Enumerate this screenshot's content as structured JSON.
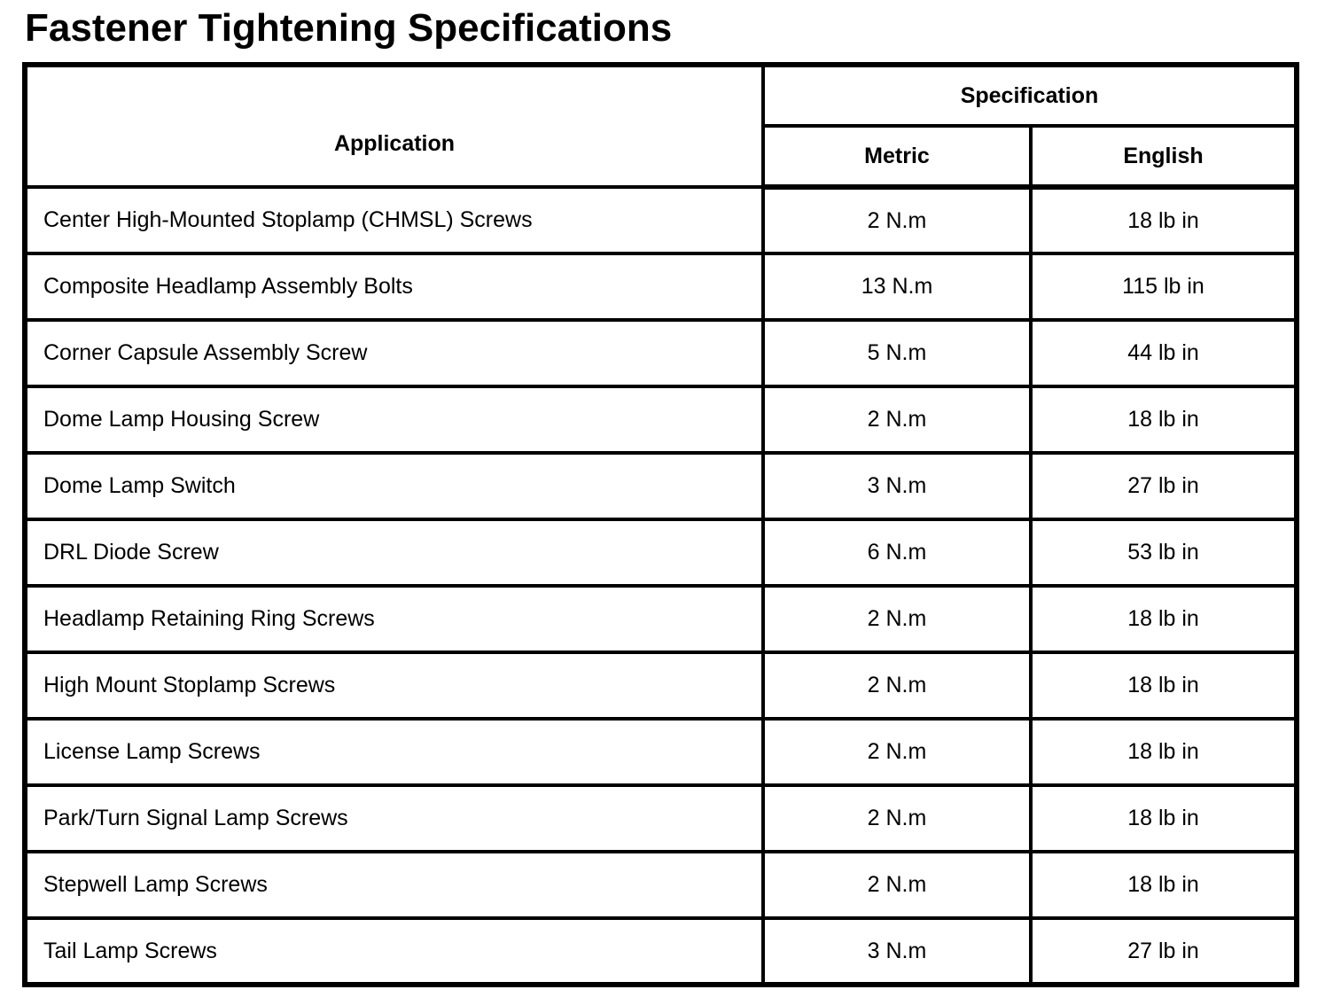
{
  "page": {
    "title": "Fastener Tightening Specifications"
  },
  "table": {
    "headers": {
      "application": "Application",
      "specification": "Specification",
      "metric": "Metric",
      "english": "English"
    },
    "rows": [
      {
        "application": "Center High-Mounted Stoplamp (CHMSL) Screws",
        "metric": "2 N.m",
        "english": "18 lb in"
      },
      {
        "application": "Composite Headlamp Assembly Bolts",
        "metric": "13 N.m",
        "english": "115 lb in"
      },
      {
        "application": "Corner Capsule Assembly Screw",
        "metric": "5 N.m",
        "english": "44 lb in"
      },
      {
        "application": "Dome Lamp Housing Screw",
        "metric": "2 N.m",
        "english": "18 lb in"
      },
      {
        "application": "Dome Lamp Switch",
        "metric": "3 N.m",
        "english": "27 lb in"
      },
      {
        "application": "DRL Diode Screw",
        "metric": "6 N.m",
        "english": "53 lb in"
      },
      {
        "application": "Headlamp Retaining Ring Screws",
        "metric": "2 N.m",
        "english": "18 lb in"
      },
      {
        "application": "High Mount Stoplamp Screws",
        "metric": "2 N.m",
        "english": "18 lb in"
      },
      {
        "application": "License Lamp Screws",
        "metric": "2 N.m",
        "english": "18 lb in"
      },
      {
        "application": "Park/Turn Signal Lamp Screws",
        "metric": "2 N.m",
        "english": "18 lb in"
      },
      {
        "application": "Stepwell Lamp Screws",
        "metric": "2 N.m",
        "english": "18 lb in"
      },
      {
        "application": "Tail Lamp Screws",
        "metric": "3 N.m",
        "english": "27 lb in"
      }
    ],
    "colors": {
      "border": "#000000",
      "background": "#ffffff",
      "text": "#000000"
    }
  }
}
